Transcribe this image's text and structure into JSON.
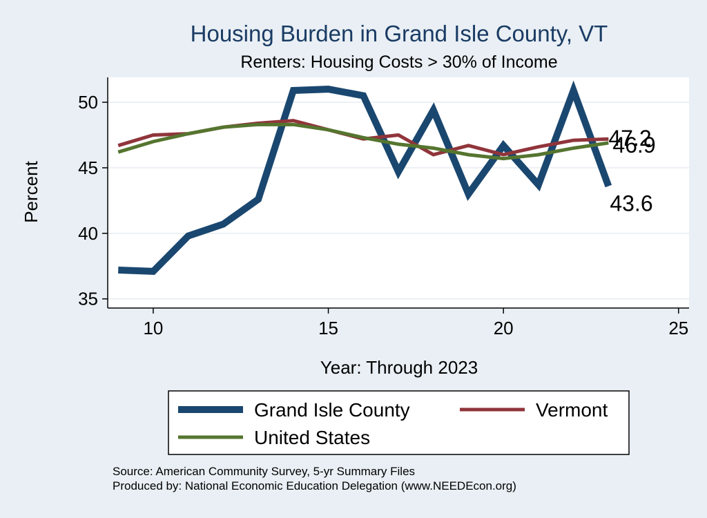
{
  "colors": {
    "background": "#e9eff4",
    "plot_background": "#ffffff",
    "grid": "#e6ecf0",
    "title": "#1a3b64",
    "grand_isle": "#1a476f",
    "vermont": "#90353b",
    "united_states": "#55752f"
  },
  "chart_data": {
    "type": "line",
    "title": "Housing Burden in Grand Isle County, VT",
    "subtitle": "Renters: Housing Costs > 30% of Income",
    "xlabel": "Year: Through 2023",
    "ylabel": "Percent",
    "xlim": [
      8.7,
      25.3
    ],
    "ylim": [
      34.3,
      51.9
    ],
    "xticks": [
      10,
      15,
      20,
      25
    ],
    "yticks": [
      35,
      40,
      45,
      50
    ],
    "grid": true,
    "legend_position": "bottom",
    "x": [
      9,
      10,
      11,
      12,
      13,
      14,
      15,
      16,
      17,
      18,
      19,
      20,
      21,
      22,
      23
    ],
    "series": [
      {
        "name": "Grand Isle County",
        "color_key": "grand_isle",
        "values": [
          37.2,
          37.1,
          39.8,
          40.7,
          42.6,
          50.9,
          51.0,
          50.5,
          44.7,
          49.4,
          43.0,
          46.7,
          43.7,
          50.9,
          43.6
        ],
        "end_label": "43.6"
      },
      {
        "name": "Vermont",
        "color_key": "vermont",
        "values": [
          46.7,
          47.5,
          47.6,
          48.1,
          48.4,
          48.6,
          47.9,
          47.2,
          47.5,
          46.0,
          46.7,
          46.0,
          46.6,
          47.1,
          47.2
        ],
        "end_label": "47.2"
      },
      {
        "name": "United States",
        "color_key": "united_states",
        "values": [
          46.2,
          47.0,
          47.6,
          48.1,
          48.3,
          48.3,
          47.9,
          47.3,
          46.8,
          46.5,
          46.0,
          45.7,
          46.0,
          46.5,
          46.9
        ],
        "end_label": "46.9"
      }
    ]
  },
  "notes": {
    "source": "Source: American Community Survey, 5-yr Summary Files",
    "produced_by": "Produced by: National Economic Education Delegation (www.NEEDEcon.org)"
  }
}
